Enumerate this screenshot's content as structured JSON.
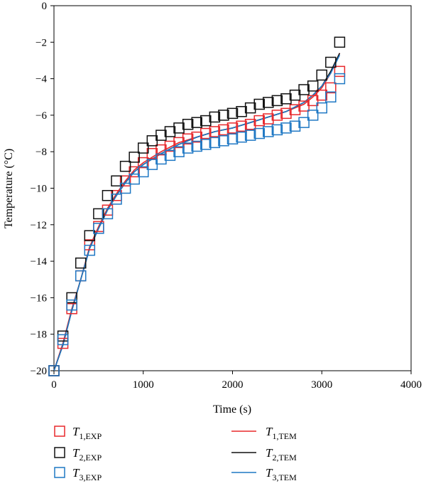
{
  "chart_data": {
    "type": "scatter",
    "xlabel": "Time (s)",
    "ylabel": "Temperature (°C)",
    "xlim": [
      0,
      4000
    ],
    "ylim": [
      -20,
      0
    ],
    "xticks": [
      0,
      1000,
      2000,
      3000,
      4000
    ],
    "yticks": [
      0,
      -2,
      -4,
      -6,
      -8,
      -10,
      -12,
      -14,
      -16,
      -18,
      -20
    ],
    "grid": false,
    "legend_position": "bottom",
    "series": [
      {
        "kind": "markers",
        "name_main": "T",
        "name_sub": "1,EXP",
        "color": "#e8282c",
        "x": [
          0,
          100,
          200,
          300,
          400,
          500,
          600,
          700,
          800,
          900,
          1000,
          1100,
          1200,
          1300,
          1400,
          1500,
          1600,
          1700,
          1800,
          1900,
          2000,
          2100,
          2200,
          2300,
          2400,
          2500,
          2600,
          2700,
          2800,
          2900,
          3000,
          3100,
          3200
        ],
        "y": [
          -20.0,
          -18.5,
          -16.6,
          -14.8,
          -13.1,
          -12.1,
          -11.2,
          -10.4,
          -9.6,
          -9.1,
          -8.6,
          -8.1,
          -7.9,
          -7.7,
          -7.5,
          -7.3,
          -7.2,
          -7.0,
          -6.9,
          -6.8,
          -6.7,
          -6.6,
          -6.5,
          -6.3,
          -6.2,
          -6.0,
          -5.9,
          -5.7,
          -5.5,
          -5.2,
          -4.9,
          -4.5,
          -3.6
        ]
      },
      {
        "kind": "markers",
        "name_main": "T",
        "name_sub": "2,EXP",
        "color": "#111111",
        "x": [
          0,
          100,
          200,
          300,
          400,
          500,
          600,
          700,
          800,
          900,
          1000,
          1100,
          1200,
          1300,
          1400,
          1500,
          1600,
          1700,
          1800,
          1900,
          2000,
          2100,
          2200,
          2300,
          2400,
          2500,
          2600,
          2700,
          2800,
          2900,
          3000,
          3100,
          3200
        ],
        "y": [
          -20.0,
          -18.1,
          -16.0,
          -14.1,
          -12.6,
          -11.4,
          -10.4,
          -9.6,
          -8.8,
          -8.3,
          -7.8,
          -7.4,
          -7.1,
          -6.9,
          -6.7,
          -6.5,
          -6.4,
          -6.3,
          -6.1,
          -6.0,
          -5.9,
          -5.8,
          -5.6,
          -5.4,
          -5.3,
          -5.2,
          -5.1,
          -4.9,
          -4.6,
          -4.4,
          -3.8,
          -3.1,
          -2.0
        ]
      },
      {
        "kind": "markers",
        "name_main": "T",
        "name_sub": "3,EXP",
        "color": "#1f78c4",
        "x": [
          0,
          100,
          200,
          300,
          400,
          500,
          600,
          700,
          800,
          900,
          1000,
          1100,
          1200,
          1300,
          1400,
          1500,
          1600,
          1700,
          1800,
          1900,
          2000,
          2100,
          2200,
          2300,
          2400,
          2500,
          2600,
          2700,
          2800,
          2900,
          3000,
          3100,
          3200
        ],
        "y": [
          -20.0,
          -18.3,
          -16.4,
          -14.8,
          -13.4,
          -12.2,
          -11.4,
          -10.6,
          -10.0,
          -9.5,
          -9.1,
          -8.7,
          -8.4,
          -8.2,
          -8.0,
          -7.8,
          -7.7,
          -7.6,
          -7.5,
          -7.4,
          -7.3,
          -7.2,
          -7.1,
          -7.0,
          -6.9,
          -6.8,
          -6.7,
          -6.6,
          -6.4,
          -6.0,
          -5.6,
          -5.0,
          -4.0
        ]
      },
      {
        "kind": "line",
        "name_main": "T",
        "name_sub": "1,TEM",
        "color": "#e8282c",
        "x": [
          0,
          100,
          200,
          300,
          400,
          500,
          600,
          700,
          800,
          900,
          1000,
          1200,
          1400,
          1600,
          1800,
          2000,
          2200,
          2400,
          2600,
          2800,
          2900,
          3000,
          3100,
          3200
        ],
        "y": [
          -20.0,
          -18.5,
          -16.6,
          -15.0,
          -13.2,
          -12.1,
          -11.1,
          -10.3,
          -9.6,
          -9.0,
          -8.6,
          -8.0,
          -7.5,
          -7.2,
          -6.9,
          -6.7,
          -6.4,
          -6.1,
          -5.8,
          -5.4,
          -5.0,
          -4.5,
          -3.7,
          -2.6
        ]
      },
      {
        "kind": "line",
        "name_main": "T",
        "name_sub": "2,TEM",
        "color": "#111111",
        "x": [
          0,
          100,
          200,
          300,
          400,
          500,
          600,
          700,
          800,
          900,
          1000,
          1200,
          1400,
          1600,
          1800,
          2000,
          2200,
          2400,
          2600,
          2800,
          2900,
          3000,
          3100,
          3200
        ],
        "y": [
          -20.0,
          -18.6,
          -16.7,
          -15.0,
          -13.3,
          -12.2,
          -11.2,
          -10.4,
          -9.7,
          -9.1,
          -8.7,
          -8.1,
          -7.6,
          -7.2,
          -6.9,
          -6.7,
          -6.4,
          -6.1,
          -5.8,
          -5.3,
          -4.9,
          -4.4,
          -3.6,
          -2.6
        ]
      },
      {
        "kind": "line",
        "name_main": "T",
        "name_sub": "3,TEM",
        "color": "#1f78c4",
        "x": [
          0,
          100,
          200,
          300,
          400,
          500,
          600,
          700,
          800,
          900,
          1000,
          1200,
          1400,
          1600,
          1800,
          2000,
          2200,
          2400,
          2600,
          2800,
          2900,
          3000,
          3100,
          3200
        ],
        "y": [
          -20.0,
          -18.6,
          -16.7,
          -15.0,
          -13.3,
          -12.2,
          -11.2,
          -10.4,
          -9.7,
          -9.1,
          -8.7,
          -8.1,
          -7.6,
          -7.2,
          -6.9,
          -6.7,
          -6.4,
          -6.1,
          -5.8,
          -5.3,
          -4.9,
          -4.4,
          -3.7,
          -2.7
        ]
      }
    ]
  }
}
